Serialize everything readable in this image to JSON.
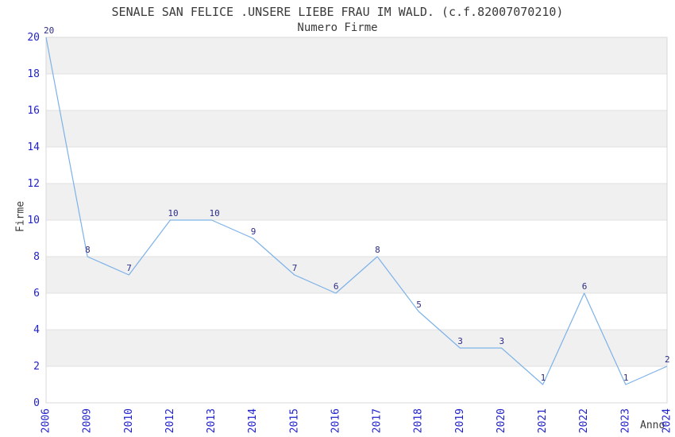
{
  "chart_data": {
    "type": "line",
    "title": "SENALE SAN FELICE .UNSERE LIEBE FRAU IM WALD. (c.f.82007070210)",
    "subtitle": "Numero Firme",
    "xlabel": "Anno",
    "ylabel": "Firme",
    "categories": [
      "2006",
      "2009",
      "2010",
      "2012",
      "2013",
      "2014",
      "2015",
      "2016",
      "2017",
      "2018",
      "2019",
      "2020",
      "2021",
      "2022",
      "2023",
      "2024"
    ],
    "values": [
      20,
      8,
      7,
      10,
      10,
      9,
      7,
      6,
      8,
      5,
      3,
      3,
      1,
      6,
      1,
      2
    ],
    "point_labels": [
      "20",
      "8",
      "7",
      "10",
      "10",
      "9",
      "7",
      "6",
      "8",
      "5",
      "3",
      "3",
      "1",
      "6",
      "1",
      "2"
    ],
    "ylim": [
      0,
      20
    ],
    "ytick_step": 2,
    "yticks": [
      "0",
      "2",
      "4",
      "6",
      "8",
      "10",
      "12",
      "14",
      "16",
      "18",
      "20"
    ],
    "grid": true,
    "legend": "none",
    "band_pattern": "alternating horizontal bands of 2 units, shaded at 2-4, 6-8, 10-12, 14-16, 18-20",
    "colors": {
      "line": "#7db2e8",
      "tick_label": "#2222cc",
      "point_label": "#2d2d86",
      "band": "#f0f0f0",
      "gridline": "#e0e0e0",
      "plot_border": "#d8d8d8",
      "text": "#3a3a3a",
      "background": "#ffffff"
    }
  }
}
